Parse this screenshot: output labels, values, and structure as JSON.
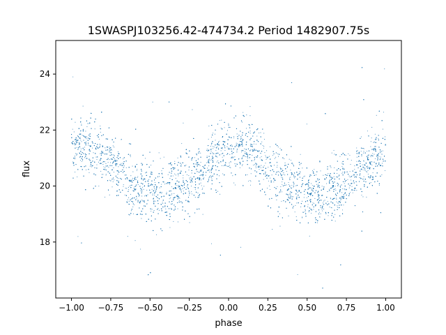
{
  "chart_data": {
    "type": "scatter",
    "title": "1SWASPJ103256.42-474734.2 Period 1482907.75s",
    "xlabel": "phase",
    "ylabel": "flux",
    "xlim": [
      -1.1,
      1.1
    ],
    "ylim": [
      16.0,
      25.2
    ],
    "xticks": [
      -1.0,
      -0.75,
      -0.5,
      -0.25,
      0.0,
      0.25,
      0.5,
      0.75,
      1.0
    ],
    "xtick_labels": [
      "−1.00",
      "−0.75",
      "−0.50",
      "−0.25",
      "0.00",
      "0.25",
      "0.50",
      "0.75",
      "1.00"
    ],
    "yticks": [
      18,
      20,
      22,
      24
    ],
    "ytick_labels": [
      "18",
      "20",
      "22",
      "24"
    ],
    "grid": false,
    "legend": "none",
    "point_color": "#1f77b4",
    "series": [
      {
        "x": [
          -1.0,
          -0.95,
          -0.9,
          -0.85,
          -0.8,
          -0.75,
          -0.7,
          -0.65,
          -0.6,
          -0.55,
          -0.5,
          -0.45,
          -0.4,
          -0.35,
          -0.3,
          -0.25,
          -0.2,
          -0.15,
          -0.1,
          -0.05,
          0.0,
          0.05,
          0.1,
          0.15,
          0.2,
          0.25,
          0.3,
          0.35,
          0.4,
          0.45,
          0.5,
          0.55,
          0.6,
          0.65,
          0.7,
          0.75,
          0.8,
          0.85,
          0.9,
          0.95,
          1.0
        ],
        "y": [
          21.4,
          21.5,
          21.5,
          21.3,
          21.0,
          20.8,
          20.6,
          20.3,
          20.0,
          19.9,
          19.8,
          19.7,
          19.7,
          19.8,
          20.0,
          20.1,
          20.3,
          20.7,
          21.0,
          21.2,
          21.3,
          21.4,
          21.4,
          21.3,
          21.0,
          20.7,
          20.4,
          20.3,
          20.0,
          19.9,
          19.8,
          19.7,
          19.8,
          19.9,
          20.0,
          20.2,
          20.4,
          20.6,
          20.9,
          21.2,
          21.4
        ]
      }
    ]
  }
}
